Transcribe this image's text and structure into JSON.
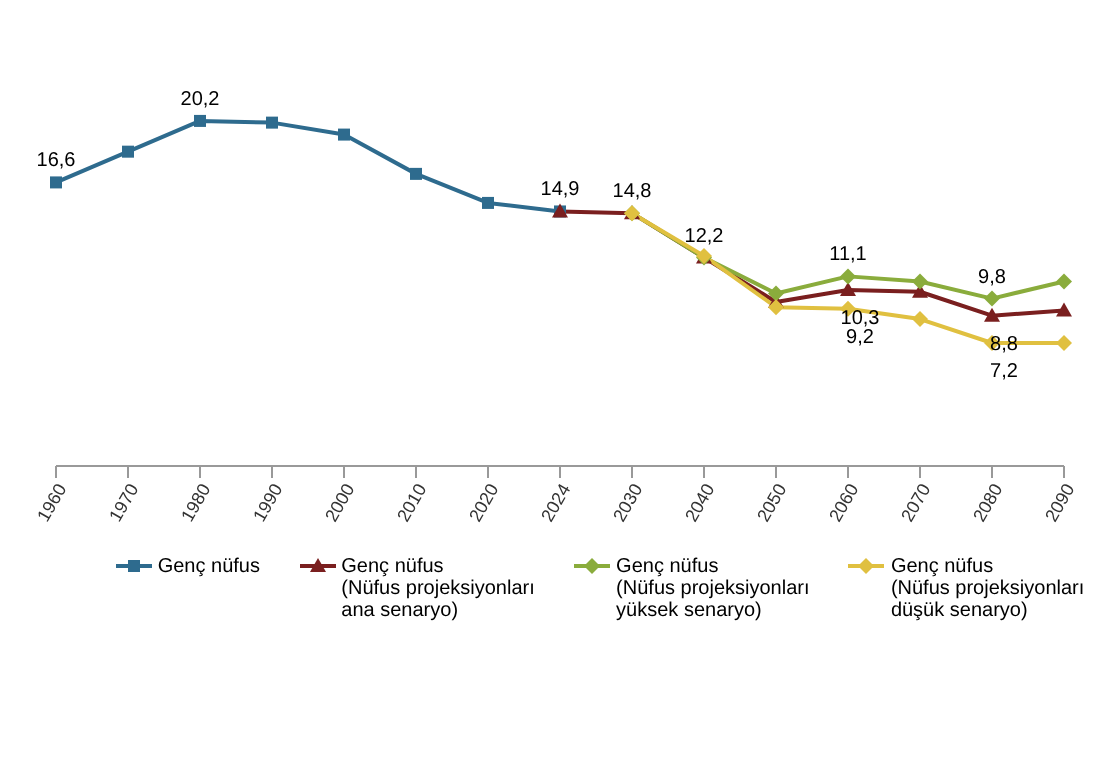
{
  "chart_data": {
    "type": "line",
    "categories": [
      "1960",
      "1970",
      "1980",
      "1990",
      "2000",
      "2010",
      "2020",
      "2024",
      "2030",
      "2040",
      "2050",
      "2060",
      "2070",
      "2080",
      "2090"
    ],
    "series": [
      {
        "name": "Genç nüfus",
        "color": "#2e6b8e",
        "marker": "square",
        "values": [
          16.6,
          18.4,
          20.2,
          20.1,
          19.4,
          17.1,
          15.4,
          14.9,
          null,
          null,
          null,
          null,
          null,
          null,
          null
        ],
        "value_labels": [
          "16,6",
          null,
          "20,2",
          null,
          null,
          null,
          null,
          "14,9",
          null,
          null,
          null,
          null,
          null,
          null,
          null
        ]
      },
      {
        "name": "Genç nüfus\n(Nüfus projeksiyonları\nana senaryo)",
        "color": "#7a1f1f",
        "marker": "triangle",
        "values": [
          null,
          null,
          null,
          null,
          null,
          null,
          null,
          14.9,
          14.8,
          12.2,
          9.6,
          10.3,
          10.2,
          8.8,
          9.1
        ],
        "value_labels": [
          null,
          null,
          null,
          null,
          null,
          null,
          null,
          null,
          "14,8",
          "12,2",
          null,
          "10,3",
          null,
          "8,8",
          null
        ]
      },
      {
        "name": "Genç nüfus\n(Nüfus projeksiyonları\nyüksek senaryo)",
        "color": "#8aac3c",
        "marker": "diamond",
        "values": [
          null,
          null,
          null,
          null,
          null,
          null,
          null,
          null,
          14.8,
          12.2,
          10.1,
          11.1,
          10.8,
          9.8,
          10.8
        ],
        "value_labels": [
          null,
          null,
          null,
          null,
          null,
          null,
          null,
          null,
          null,
          null,
          null,
          "11,1",
          null,
          "9,8",
          null
        ]
      },
      {
        "name": "Genç nüfus\n(Nüfus projeksiyonları\ndüşük senaryo)",
        "color": "#e0c040",
        "marker": "diamond",
        "values": [
          null,
          null,
          null,
          null,
          null,
          null,
          null,
          null,
          14.8,
          12.3,
          9.3,
          9.2,
          8.6,
          7.2,
          7.2
        ],
        "value_labels": [
          null,
          null,
          null,
          null,
          null,
          null,
          null,
          null,
          null,
          null,
          null,
          "9,2",
          null,
          "7,2",
          null
        ]
      }
    ],
    "tick_labels": "x",
    "grid": false,
    "legend": "bottom"
  }
}
